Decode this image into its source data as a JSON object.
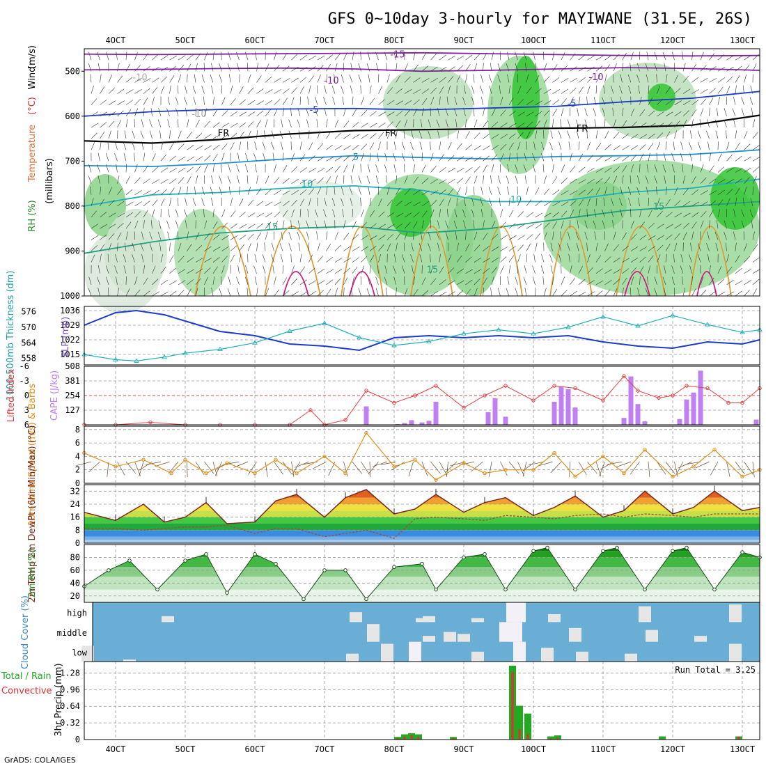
{
  "title": "GFS 0~10day 3-hourly for MAYIWANE (31.5E, 26S)",
  "footer": "GrADS: COLA/IGES",
  "colors": {
    "temp": "#e0303a",
    "wind": "#6e4a2a",
    "rh_green": "#33c633",
    "cape": "#c080f0",
    "slp": "#1a3cc8",
    "thick": "#20b0b8",
    "li": "#e04040",
    "wind10": "#e09020",
    "cloud_bg": "#6aaed6",
    "cloud_fg": "#e6e6e6",
    "precip_total": "#22aa22",
    "precip_conv": "#e03030"
  },
  "chart_data": [
    {
      "id": "upper_air",
      "type": "heatmap",
      "title": "Upper air",
      "ylabel_parts": [
        "RH (%)",
        "Temperature",
        "(°C)",
        "Wind",
        "(m/s)",
        "(millibars)"
      ],
      "yticks": [
        500,
        600,
        700,
        800,
        900,
        1000
      ],
      "ylim": [
        450,
        1000
      ],
      "xticks": [
        "4OCT",
        "5OCT",
        "6OCT",
        "7OCT",
        "8OCT",
        "9OCT",
        "10OCT",
        "11OCT",
        "12OCT",
        "13OCT"
      ],
      "xlim_days": [
        3.55,
        13.25
      ],
      "isotherm_labels": [
        {
          "text": "-15",
          "x": 8.05,
          "p": 462,
          "color": "#8020a0"
        },
        {
          "text": "-10",
          "x": 7.1,
          "p": 520,
          "color": "#8020a0"
        },
        {
          "text": "-10",
          "x": 10.9,
          "p": 512,
          "color": "#8020a0"
        },
        {
          "text": "-5",
          "x": 6.85,
          "p": 585,
          "color": "#1a3cc8"
        },
        {
          "text": "-5",
          "x": 10.55,
          "p": 571,
          "color": "#1a3cc8"
        },
        {
          "text": "FR",
          "x": 5.55,
          "p": 637,
          "color": "#000000"
        },
        {
          "text": "FR",
          "x": 7.95,
          "p": 637,
          "color": "#000000"
        },
        {
          "text": "FR",
          "x": 10.7,
          "p": 627,
          "color": "#000000"
        },
        {
          "text": "5",
          "x": 7.45,
          "p": 690,
          "color": "#2090d0"
        },
        {
          "text": "10",
          "x": 6.75,
          "p": 750,
          "color": "#20b0b8"
        },
        {
          "text": "10",
          "x": 9.75,
          "p": 785,
          "color": "#20b0b8"
        },
        {
          "text": "15",
          "x": 6.25,
          "p": 845,
          "color": "#20a080"
        },
        {
          "text": "15",
          "x": 11.8,
          "p": 800,
          "color": "#20a080"
        },
        {
          "text": "15",
          "x": 8.55,
          "p": 940,
          "color": "#20a080"
        },
        {
          "text": "-10",
          "x": 5.2,
          "p": 594,
          "color": "#aaaaaa"
        },
        {
          "text": "-10",
          "x": 4.35,
          "p": 513,
          "color": "#aaaaaa"
        }
      ],
      "isotherms": [
        {
          "name": "-15",
          "color": "#8020a0",
          "p": [
            462,
            463,
            462,
            461,
            460,
            459,
            461,
            463,
            465,
            466,
            465
          ]
        },
        {
          "name": "-10",
          "color": "#8020a0",
          "p": [
            497,
            496,
            494,
            493,
            495,
            500,
            498,
            495,
            492,
            494,
            498
          ]
        },
        {
          "name": "-5",
          "color": "#1a3cc8",
          "p": [
            600,
            590,
            585,
            584,
            583,
            586,
            582,
            578,
            568,
            560,
            545
          ]
        },
        {
          "name": "FR",
          "color": "#000000",
          "p": [
            655,
            660,
            652,
            640,
            632,
            630,
            628,
            627,
            625,
            620,
            598
          ]
        },
        {
          "name": "5",
          "color": "#2090d0",
          "p": [
            710,
            712,
            705,
            695,
            688,
            692,
            695,
            690,
            688,
            685,
            675
          ]
        },
        {
          "name": "10",
          "color": "#20b0b8",
          "p": [
            800,
            775,
            770,
            760,
            755,
            765,
            790,
            790,
            770,
            760,
            740
          ]
        },
        {
          "name": "15",
          "color": "#20a080",
          "p": [
            905,
            880,
            860,
            850,
            845,
            860,
            850,
            830,
            810,
            800,
            790
          ]
        }
      ]
    },
    {
      "id": "slp_thickness",
      "type": "line",
      "ylabel_left": "1000-500mb Thickness (dm)",
      "ylabel_right": "SLP (mb)",
      "left_ticks": [
        558,
        564,
        570,
        576
      ],
      "right_ticks": [
        1015,
        1022,
        1029,
        1036
      ],
      "x": [
        3.55,
        4.0,
        4.3,
        4.7,
        5.0,
        5.5,
        6.0,
        6.5,
        7.0,
        7.5,
        8.0,
        8.5,
        9.0,
        9.5,
        10.0,
        10.5,
        11.0,
        11.5,
        12.0,
        12.5,
        13.0,
        13.25
      ],
      "series": [
        {
          "name": "SLP",
          "axis": "right",
          "values": [
            1029,
            1035,
            1036,
            1034,
            1031,
            1026,
            1024,
            1020,
            1019,
            1017,
            1023,
            1024,
            1023,
            1024,
            1023,
            1024,
            1021,
            1019,
            1018,
            1021,
            1020,
            1022
          ]
        },
        {
          "name": "Thickness",
          "axis": "left",
          "values": [
            559.5,
            557.5,
            557.0,
            558.5,
            560.0,
            561.5,
            564.0,
            568.5,
            571.5,
            566.0,
            563.0,
            564.5,
            567.5,
            569.0,
            567.5,
            570.0,
            574.0,
            570.5,
            574.5,
            571.0,
            568.0,
            569.0
          ]
        }
      ]
    },
    {
      "id": "cape_li",
      "type": "bar",
      "ylabel_left": "Lifted Index",
      "ylabel_right": "CAPE (J/kg)",
      "li_ticks": [
        -6,
        -3,
        0,
        3,
        6
      ],
      "cape_ticks": [
        127,
        254,
        381,
        508
      ],
      "cape_max": 508,
      "cape_bars": [
        {
          "x": 7.6,
          "v": 160
        },
        {
          "x": 8.05,
          "v": 6
        },
        {
          "x": 8.15,
          "v": 15
        },
        {
          "x": 8.25,
          "v": 40
        },
        {
          "x": 8.4,
          "v": 20
        },
        {
          "x": 8.5,
          "v": 35
        },
        {
          "x": 8.6,
          "v": 200
        },
        {
          "x": 9.35,
          "v": 110
        },
        {
          "x": 9.45,
          "v": 230
        },
        {
          "x": 9.6,
          "v": 70
        },
        {
          "x": 10.3,
          "v": 200
        },
        {
          "x": 10.4,
          "v": 330
        },
        {
          "x": 10.5,
          "v": 310
        },
        {
          "x": 10.6,
          "v": 150
        },
        {
          "x": 11.3,
          "v": 60
        },
        {
          "x": 11.4,
          "v": 420
        },
        {
          "x": 11.5,
          "v": 180
        },
        {
          "x": 11.6,
          "v": 30
        },
        {
          "x": 12.1,
          "v": 50
        },
        {
          "x": 12.2,
          "v": 220
        },
        {
          "x": 12.3,
          "v": 280
        },
        {
          "x": 12.4,
          "v": 470
        },
        {
          "x": 13.2,
          "v": 45
        }
      ],
      "li_x": [
        3.55,
        4.0,
        4.5,
        5.0,
        5.5,
        6.0,
        6.5,
        6.8,
        7.0,
        7.3,
        7.6,
        8.0,
        8.3,
        8.6,
        9.0,
        9.3,
        9.6,
        10.0,
        10.3,
        10.6,
        11.0,
        11.3,
        11.5,
        11.8,
        12.0,
        12.2,
        12.5,
        12.8,
        13.0,
        13.25
      ],
      "li_values": [
        6.0,
        6.0,
        5.5,
        6.0,
        6.0,
        6.0,
        6.0,
        3.0,
        6.0,
        5.0,
        -1.0,
        1.5,
        0.0,
        -2.0,
        2.5,
        0.0,
        -2.0,
        1.0,
        -2.0,
        -1.5,
        1.0,
        -4.0,
        -1.0,
        0.5,
        0.0,
        -2.0,
        -1.5,
        1.5,
        1.5,
        -1.5
      ]
    },
    {
      "id": "wind10m",
      "type": "line",
      "ylabel": "10m Wind Speed (m/s) & Barbs",
      "yticks": [
        0,
        2,
        4,
        6,
        8
      ],
      "ylim": [
        0,
        8.5
      ],
      "x": [
        3.55,
        4.0,
        4.4,
        4.8,
        5.0,
        5.3,
        5.6,
        6.0,
        6.3,
        6.6,
        7.0,
        7.3,
        7.6,
        8.0,
        8.3,
        8.6,
        9.0,
        9.3,
        9.6,
        10.0,
        10.3,
        10.6,
        11.0,
        11.3,
        11.6,
        12.0,
        12.3,
        12.6,
        13.0,
        13.25
      ],
      "values": [
        4.5,
        2.5,
        3.5,
        1.5,
        3.5,
        1.5,
        3.0,
        1.5,
        3.5,
        1.5,
        4.0,
        1.5,
        7.5,
        2.5,
        3.5,
        0.5,
        3.0,
        1.5,
        2.0,
        2.0,
        4.5,
        1.0,
        4.0,
        1.5,
        5.0,
        1.0,
        2.5,
        5.0,
        1.0,
        2.0
      ]
    },
    {
      "id": "temp2m",
      "type": "area",
      "ylabel": "2m Temp 2m DewPt (6hr Min/Max) (°C)",
      "yticks": [
        0,
        8,
        16,
        24,
        32
      ],
      "ylim": [
        0,
        36
      ],
      "x": [
        3.55,
        4.0,
        4.4,
        4.7,
        5.0,
        5.3,
        5.6,
        6.0,
        6.3,
        6.6,
        7.0,
        7.3,
        7.6,
        8.0,
        8.3,
        8.6,
        9.0,
        9.3,
        9.6,
        10.0,
        10.3,
        10.6,
        11.0,
        11.3,
        11.6,
        12.0,
        12.3,
        12.6,
        13.0,
        13.25
      ],
      "temp": [
        19,
        14,
        24,
        13,
        16,
        25,
        12,
        13,
        26,
        30,
        16,
        28,
        33,
        18,
        21,
        30,
        19,
        25,
        28,
        17,
        22,
        29,
        16,
        20,
        32,
        18,
        22,
        32,
        20,
        22
      ],
      "dewpt": [
        9,
        9,
        8,
        9,
        10,
        10,
        11,
        6,
        9,
        9,
        4,
        6,
        8,
        3,
        15,
        16,
        15,
        14,
        17,
        16,
        15,
        17,
        18,
        16,
        18,
        17,
        16,
        18,
        18,
        18
      ]
    },
    {
      "id": "rh2m",
      "type": "area",
      "ylabel": "2m RH (%)",
      "yticks": [
        20,
        40,
        60,
        80
      ],
      "ylim": [
        10,
        100
      ],
      "x": [
        3.55,
        3.9,
        4.2,
        4.6,
        5.0,
        5.3,
        5.6,
        6.0,
        6.3,
        6.7,
        7.0,
        7.3,
        7.6,
        8.0,
        8.4,
        8.6,
        9.0,
        9.3,
        9.6,
        10.0,
        10.2,
        10.6,
        11.0,
        11.2,
        11.6,
        12.0,
        12.2,
        12.6,
        13.0,
        13.25
      ],
      "values": [
        35,
        60,
        75,
        30,
        75,
        85,
        25,
        85,
        70,
        15,
        60,
        60,
        15,
        65,
        70,
        30,
        80,
        85,
        30,
        90,
        95,
        30,
        90,
        95,
        30,
        90,
        95,
        30,
        88,
        80
      ]
    },
    {
      "id": "cloud",
      "type": "heatmap",
      "ylabel": "Cloud Cover (%)",
      "levels": [
        "high",
        "middle",
        "low"
      ],
      "high_cells": [
        {
          "x": 4.75,
          "v": 0.3
        },
        {
          "x": 7.45,
          "v": 0.5
        },
        {
          "x": 8.4,
          "v": 0.2
        },
        {
          "x": 8.5,
          "v": 0.3
        },
        {
          "x": 9.2,
          "v": 0.2
        },
        {
          "x": 9.7,
          "v": 1.0
        },
        {
          "x": 9.8,
          "v": 1.0
        },
        {
          "x": 10.3,
          "v": 0.4
        },
        {
          "x": 11.6,
          "v": 0.8
        },
        {
          "x": 12.9,
          "v": 0.9
        }
      ],
      "mid_cells": [
        {
          "x": 7.7,
          "v": 0.9
        },
        {
          "x": 8.5,
          "v": 0.3
        },
        {
          "x": 8.8,
          "v": 0.5
        },
        {
          "x": 9.0,
          "v": 0.4
        },
        {
          "x": 9.6,
          "v": 1.0
        },
        {
          "x": 9.75,
          "v": 1.0
        },
        {
          "x": 10.6,
          "v": 0.7
        },
        {
          "x": 11.7,
          "v": 0.6
        },
        {
          "x": 12.4,
          "v": 0.3
        }
      ],
      "low_cells": [
        {
          "x": 3.6,
          "v": 0.8
        },
        {
          "x": 4.2,
          "v": 0.1
        },
        {
          "x": 7.4,
          "v": 0.4
        },
        {
          "x": 7.9,
          "v": 0.9
        },
        {
          "x": 8.3,
          "v": 1.0
        },
        {
          "x": 9.2,
          "v": 0.5
        },
        {
          "x": 9.8,
          "v": 1.0
        },
        {
          "x": 10.2,
          "v": 0.7
        },
        {
          "x": 10.7,
          "v": 0.5
        },
        {
          "x": 11.4,
          "v": 0.4
        },
        {
          "x": 12.9,
          "v": 0.9
        }
      ]
    },
    {
      "id": "precip",
      "type": "bar",
      "ylabel_left": "Total / Rain",
      "ylabel_left2": "Convective",
      "ylabel_right": "3hr Precip (mm)",
      "run_total": "Run Total = 3.25",
      "yticks": [
        0,
        0.32,
        0.64,
        0.96,
        1.28
      ],
      "ylim": [
        0,
        1.42
      ],
      "bars": [
        {
          "x": 8.05,
          "total": 0.05,
          "conv": 0.03
        },
        {
          "x": 8.15,
          "total": 0.1,
          "conv": 0.06
        },
        {
          "x": 8.25,
          "total": 0.12,
          "conv": 0.08
        },
        {
          "x": 8.35,
          "total": 0.1,
          "conv": 0.05
        },
        {
          "x": 8.85,
          "total": 0.05,
          "conv": 0.03
        },
        {
          "x": 9.7,
          "total": 1.42,
          "conv": 1.3
        },
        {
          "x": 9.8,
          "total": 0.65,
          "conv": 0.2
        },
        {
          "x": 9.92,
          "total": 0.5,
          "conv": 0.1
        },
        {
          "x": 10.25,
          "total": 0.06,
          "conv": 0.02
        },
        {
          "x": 10.35,
          "total": 0.08,
          "conv": 0.04
        },
        {
          "x": 11.85,
          "total": 0.06,
          "conv": 0.01
        },
        {
          "x": 12.95,
          "total": 0.06,
          "conv": 0.06
        }
      ]
    }
  ]
}
